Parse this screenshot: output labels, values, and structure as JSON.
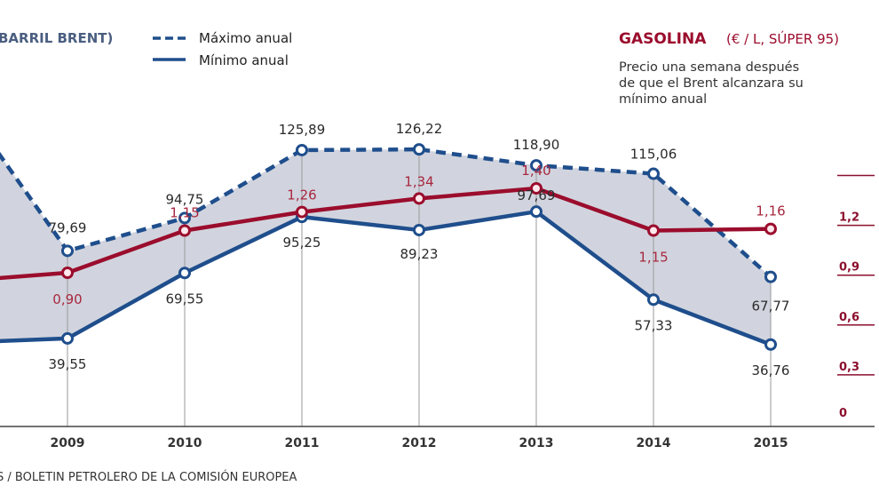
{
  "header": {
    "brent_label": "BARRIL BRENT)",
    "legend": [
      {
        "style": "dashed",
        "label": "Máximo anual"
      },
      {
        "style": "solid",
        "label": "Mínimo anual"
      }
    ],
    "gasoline_title": "GASOLINA",
    "gasoline_unit": "(€ / L, SÚPER 95)",
    "gasoline_subtitle": [
      "Precio una semana después",
      "de que el Brent alcanzara su",
      "mínimo anual"
    ]
  },
  "source": "S / BOLETIN PETROLERO DE LA COMISIÓN EUROPEA",
  "colors": {
    "brent": "#1f4e8c",
    "gasoline": "#9b0d2d",
    "band": "#c9ccd8",
    "gasoline_label": "#a8273f"
  },
  "chart_data": {
    "type": "line",
    "title": "Barril Brent vs Gasolina",
    "x": [
      "2009",
      "2010",
      "2011",
      "2012",
      "2013",
      "2014",
      "2015"
    ],
    "series": [
      {
        "name": "Máximo anual",
        "axis": "left",
        "style": "dashed",
        "values": [
          79.69,
          94.75,
          125.89,
          126.22,
          118.9,
          115.06,
          67.77
        ],
        "labels": [
          "79,69",
          "94,75",
          "125,89",
          "126,22",
          "118,90",
          "115,06",
          "67,77"
        ]
      },
      {
        "name": "Mínimo anual",
        "axis": "left",
        "style": "solid",
        "values": [
          39.55,
          69.55,
          95.25,
          89.23,
          97.69,
          57.33,
          36.76
        ],
        "labels": [
          "39,55",
          "69,55",
          "95,25",
          "89,23",
          "97,69",
          "57,33",
          "36,76"
        ]
      },
      {
        "name": "Gasolina (€ / L, Súper 95)",
        "axis": "right",
        "style": "solid",
        "values": [
          0.9,
          1.15,
          1.26,
          1.34,
          1.4,
          1.15,
          1.16
        ],
        "labels": [
          "0,90",
          "1,15",
          "1,26",
          "1,34",
          "1,40",
          "1,15",
          "1,16"
        ]
      }
    ],
    "right_axis": {
      "ticks": [
        "0",
        "0,3",
        "0,6",
        "0,9",
        "1,2",
        ""
      ],
      "tick_values": [
        0,
        0.3,
        0.6,
        0.9,
        1.2,
        1.5
      ],
      "range": [
        0,
        1.5
      ]
    },
    "left_axis_range": [
      0,
      160
    ],
    "shaded_band": "between Máximo anual and Mínimo anual",
    "legend_position": "top",
    "grid": "vertical lines at each year"
  }
}
